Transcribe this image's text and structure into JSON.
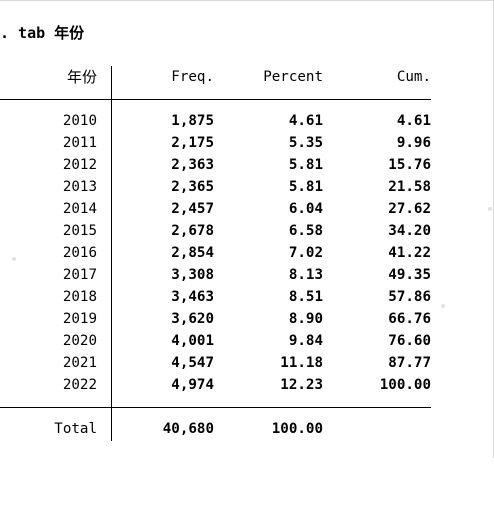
{
  "command": ". tab 年份",
  "table": {
    "headers": {
      "year": "年份",
      "freq": "Freq.",
      "percent": "Percent",
      "cum": "Cum."
    },
    "rows": [
      {
        "year": "2010",
        "freq": "1,875",
        "percent": "4.61",
        "cum": "4.61"
      },
      {
        "year": "2011",
        "freq": "2,175",
        "percent": "5.35",
        "cum": "9.96"
      },
      {
        "year": "2012",
        "freq": "2,363",
        "percent": "5.81",
        "cum": "15.76"
      },
      {
        "year": "2013",
        "freq": "2,365",
        "percent": "5.81",
        "cum": "21.58"
      },
      {
        "year": "2014",
        "freq": "2,457",
        "percent": "6.04",
        "cum": "27.62"
      },
      {
        "year": "2015",
        "freq": "2,678",
        "percent": "6.58",
        "cum": "34.20"
      },
      {
        "year": "2016",
        "freq": "2,854",
        "percent": "7.02",
        "cum": "41.22"
      },
      {
        "year": "2017",
        "freq": "3,308",
        "percent": "8.13",
        "cum": "49.35"
      },
      {
        "year": "2018",
        "freq": "3,463",
        "percent": "8.51",
        "cum": "57.86"
      },
      {
        "year": "2019",
        "freq": "3,620",
        "percent": "8.90",
        "cum": "66.76"
      },
      {
        "year": "2020",
        "freq": "4,001",
        "percent": "9.84",
        "cum": "76.60"
      },
      {
        "year": "2021",
        "freq": "4,547",
        "percent": "11.18",
        "cum": "87.77"
      },
      {
        "year": "2022",
        "freq": "4,974",
        "percent": "12.23",
        "cum": "100.00"
      }
    ],
    "total": {
      "label": "Total",
      "freq": "40,680",
      "percent": "100.00"
    }
  }
}
